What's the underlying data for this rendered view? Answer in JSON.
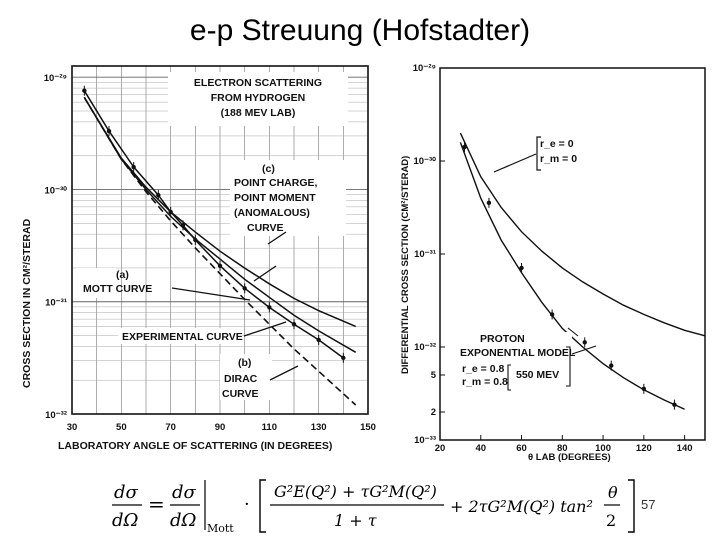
{
  "slide": {
    "title": "e-p Streuung (Hofstadter)",
    "page_number": "57"
  },
  "formula": {
    "text": "dσ/dΩ = dσ/dΩ|Mott · [ (G_E²(Q²) + τ G_M²(Q²)) / (1 + τ) + 2τ G_M²(Q²) tan²(θ/2) ]",
    "lhs": "dσ",
    "lhs_den": "dΩ",
    "mott": "Mott",
    "num": "G²E(Q²) + τG²M(Q²)",
    "den": "1 + τ",
    "tail": "+ 2τG²M(Q²) tan²",
    "theta": "θ",
    "two": "2"
  },
  "chart_data": [
    {
      "type": "line",
      "title": "ELECTRON SCATTERING FROM HYDROGEN (188 MEV LAB)",
      "title_lines": [
        "ELECTRON SCATTERING",
        "FROM HYDROGEN",
        "(188 MEV LAB)"
      ],
      "xlabel": "LABORATORY ANGLE OF SCATTERING (IN DEGREES)",
      "ylabel": "CROSS SECTION IN CM²/STERAD",
      "x_ticks": [
        "30",
        "50",
        "70",
        "90",
        "110",
        "130",
        "150"
      ],
      "y_ticks": [
        "10⁻²⁹",
        "10⁻³⁰",
        "10⁻³¹",
        "10⁻³²"
      ],
      "xlim": [
        30,
        150
      ],
      "ylim_log10": [
        -32,
        -28.9
      ],
      "yscale": "log",
      "grid": true,
      "series": [
        {
          "name": "(c) POINT CHARGE, POINT MOMENT (ANOMALOUS) CURVE",
          "x": [
            35,
            50,
            60,
            70,
            80,
            90,
            100,
            110,
            120,
            130,
            145
          ],
          "y_log10": [
            -29.18,
            -29.72,
            -29.98,
            -30.2,
            -30.38,
            -30.55,
            -30.7,
            -30.84,
            -30.97,
            -31.08,
            -31.22
          ]
        },
        {
          "name": "(a) MOTT CURVE",
          "x": [
            35,
            50,
            60,
            70,
            80,
            90,
            100,
            110,
            120,
            130,
            145
          ],
          "y_log10": [
            -29.18,
            -29.73,
            -30.0,
            -30.24,
            -30.44,
            -30.62,
            -30.8,
            -30.96,
            -31.12,
            -31.26,
            -31.45
          ]
        },
        {
          "name": "(b) DIRAC CURVE",
          "x": [
            35,
            50,
            60,
            70,
            80,
            90,
            100,
            110,
            120,
            130,
            145
          ],
          "y_log10": [
            -29.18,
            -29.73,
            -30.02,
            -30.28,
            -30.52,
            -30.75,
            -30.98,
            -31.2,
            -31.42,
            -31.62,
            -31.92
          ]
        },
        {
          "name": "EXPERIMENTAL CURVE",
          "x": [
            35,
            45,
            55,
            65,
            70,
            75,
            80,
            90,
            100,
            110,
            120,
            130,
            140
          ],
          "y_log10": [
            -29.12,
            -29.48,
            -29.8,
            -30.05,
            -30.2,
            -30.32,
            -30.45,
            -30.68,
            -30.88,
            -31.05,
            -31.2,
            -31.34,
            -31.5
          ]
        }
      ],
      "points": {
        "x": [
          35,
          45,
          55,
          65,
          70,
          75,
          80,
          90,
          100,
          110,
          120,
          130,
          140
        ],
        "y_log10": [
          -29.12,
          -29.48,
          -29.8,
          -30.05,
          -30.2,
          -30.32,
          -30.45,
          -30.68,
          -30.88,
          -31.05,
          -31.2,
          -31.34,
          -31.5
        ]
      },
      "annotations": [
        "(c)",
        "POINT CHARGE,",
        "POINT MOMENT",
        "(ANOMALOUS)",
        "CURVE",
        "(a)",
        "MOTT CURVE",
        "EXPERIMENTAL CURVE",
        "(b)",
        "DIRAC",
        "CURVE"
      ]
    },
    {
      "type": "line",
      "xlabel": "θ LAB (DEGREES)",
      "ylabel": "DIFFERENTIAL CROSS SECTION (CM²/STERAD)",
      "x_ticks": [
        "20",
        "40",
        "60",
        "80",
        "100",
        "120",
        "140"
      ],
      "y_ticks": [
        "10⁻²⁹",
        "10⁻³⁰",
        "10⁻³¹",
        "10⁻³²",
        "5",
        "2",
        "10⁻³³"
      ],
      "xlim": [
        20,
        150
      ],
      "ylim_log10": [
        -33,
        -29
      ],
      "yscale": "log",
      "grid": false,
      "series": [
        {
          "name": "r_e = 0, r_m = 0",
          "x": [
            30,
            40,
            50,
            60,
            70,
            80,
            90,
            100,
            110,
            120,
            130,
            140,
            150
          ],
          "y_log10": [
            -29.7,
            -30.17,
            -30.5,
            -30.76,
            -30.97,
            -31.15,
            -31.3,
            -31.43,
            -31.55,
            -31.65,
            -31.74,
            -31.82,
            -31.88
          ]
        },
        {
          "name": "PROTON EXPONENTIAL MODEL r_e = 0.8, r_m = 0.8 550 MEV",
          "x": [
            30,
            40,
            50,
            60,
            70,
            80,
            90,
            100,
            110,
            120,
            130,
            140
          ],
          "y_log10": [
            -29.8,
            -30.4,
            -30.85,
            -31.2,
            -31.52,
            -31.8,
            -32.0,
            -32.18,
            -32.33,
            -32.46,
            -32.57,
            -32.67
          ]
        }
      ],
      "points": {
        "x": [
          32,
          44,
          60,
          75,
          91,
          104,
          120,
          135
        ],
        "y_log10": [
          -29.85,
          -30.45,
          -31.15,
          -31.65,
          -31.95,
          -32.2,
          -32.45,
          -32.62
        ]
      },
      "annotations": [
        "r_e = 0",
        "r_m = 0",
        "PROTON",
        "EXPONENTIAL MODEL",
        "r_e = 0.8",
        "r_m = 0.8",
        "550 MEV"
      ]
    }
  ]
}
